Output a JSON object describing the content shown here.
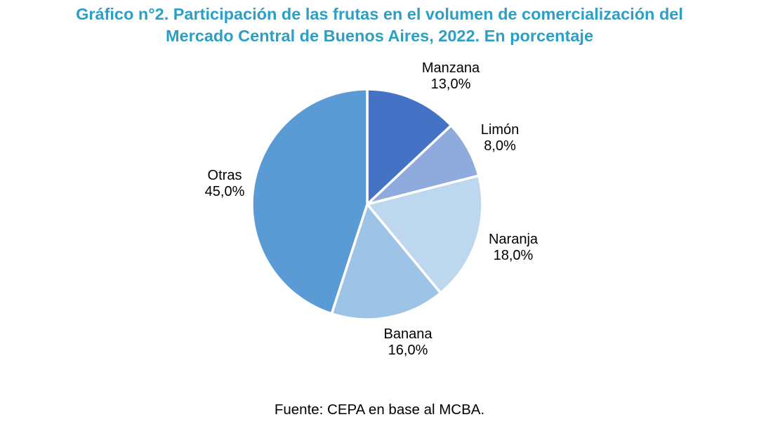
{
  "chart_data": {
    "type": "pie",
    "title": "Gráfico n°2. Participación de las frutas en el volumen de comercialización del Mercado Central de Buenos Aires, 2022. En porcentaje",
    "title_lines": [
      "Gráfico n°2. Participación de las frutas en el volumen de comercialización del",
      "Mercado Central de Buenos Aires, 2022. En porcentaje"
    ],
    "title_color": "#2BA0C4",
    "categories": [
      "Manzana",
      "Limón",
      "Naranja",
      "Banana",
      "Otras"
    ],
    "values": [
      13.0,
      8.0,
      18.0,
      16.0,
      45.0
    ],
    "value_labels": [
      "13,0%",
      "8,0%",
      "18,0%",
      "16,0%",
      "45,0%"
    ],
    "colors": [
      "#4472C4",
      "#8FAADC",
      "#BDD7EE",
      "#9DC3E6",
      "#5B9BD5"
    ],
    "slice_ids": [
      "manzana",
      "limon",
      "naranja",
      "banana",
      "otras"
    ],
    "slice_border_color": "#FFFFFF",
    "start_position": "12-o-clock",
    "direction": "clockwise",
    "legend": "none",
    "label_color": "#000000",
    "source": "Fuente: CEPA en base al MCBA."
  }
}
